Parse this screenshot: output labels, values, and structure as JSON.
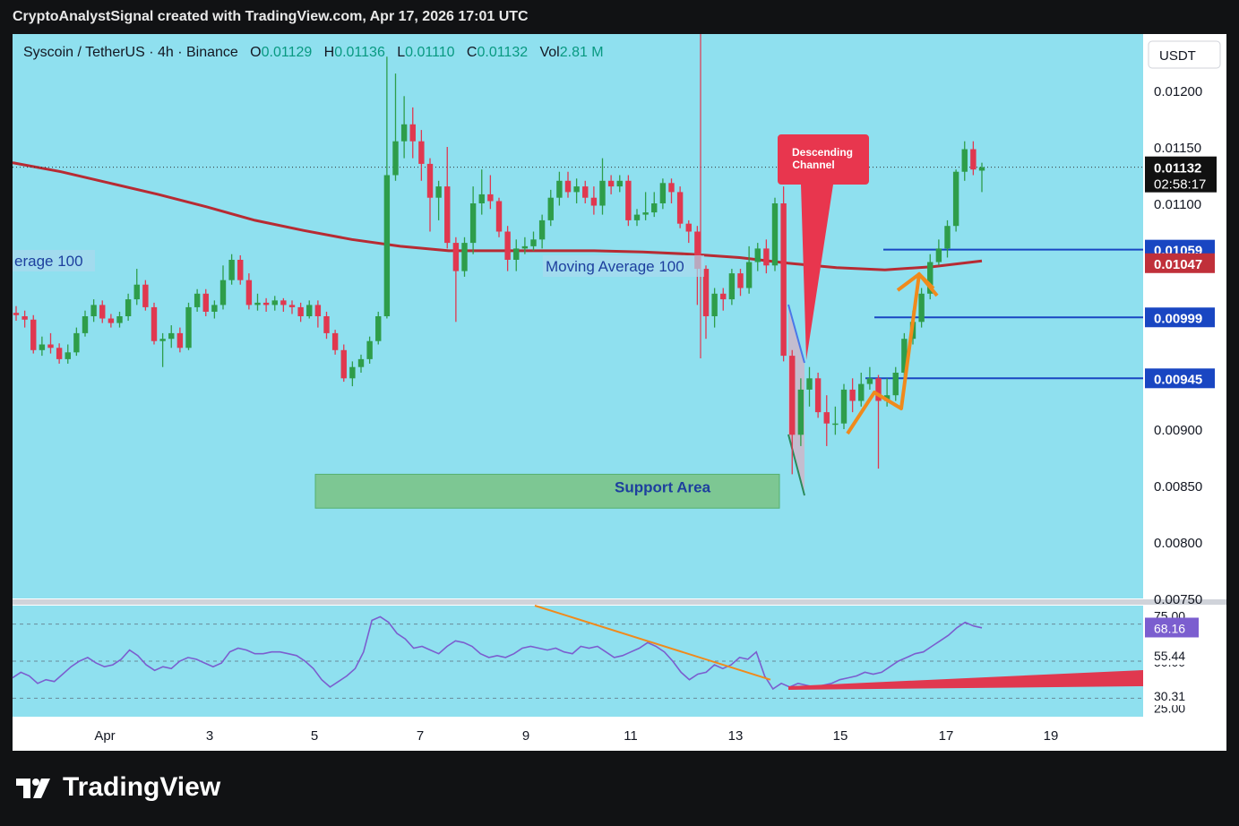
{
  "header": {
    "credit": "CryptoAnalystSignal created with TradingView.com, Apr 17, 2026 17:01 UTC"
  },
  "legend": {
    "symbol": "Syscoin / TetherUS · 4h · Binance",
    "o_label": "O",
    "o_value": "0.01129",
    "h_label": "H",
    "h_value": "0.01136",
    "l_label": "L",
    "l_value": "0.01110",
    "c_label": "C",
    "c_value": "0.01132",
    "vol_label": "Vol",
    "vol_value": "2.81 M"
  },
  "currency_badge": "USDT",
  "brand": "TradingView",
  "colors": {
    "background": "#8fe0ef",
    "up": "#2e9d4a",
    "down": "#e0384f",
    "ma": "#b72b33",
    "level_line": "#1946c2",
    "orange": "#f08a1c",
    "rsi": "#7b5ecf",
    "support": "#7cc58a"
  },
  "chart_data": [
    {
      "type": "candlestick",
      "ylim": [
        0.0075,
        0.0125
      ],
      "y_ticks": [
        "0.01200",
        "0.01150",
        "0.01100",
        "0.00900",
        "0.00850",
        "0.00800",
        "0.00750"
      ],
      "x_ticks": [
        "Apr",
        "3",
        "5",
        "7",
        "9",
        "11",
        "13",
        "15",
        "17",
        "19"
      ],
      "current_price": "0.01132",
      "countdown": "02:58:17",
      "price_labels": [
        {
          "value": 0.01059,
          "text": "0.01059"
        },
        {
          "value": 0.01047,
          "text": "0.01047"
        },
        {
          "value": 0.00999,
          "text": "0.00999"
        },
        {
          "value": 0.00945,
          "text": "0.00945"
        }
      ],
      "ma_label": "Moving Average 100",
      "ma_label_edge": "erage 100",
      "callout": "Descending Channel",
      "support_label": "Support Area",
      "support_zone": [
        0.0083,
        0.0086
      ],
      "ma_values": [
        0.01136,
        0.01128,
        0.01118,
        0.01108,
        0.01097,
        0.01085,
        0.01076,
        0.01068,
        0.01062,
        0.01058,
        0.01058,
        0.01058,
        0.01058,
        0.01057,
        0.01055,
        0.01052,
        0.01047,
        0.01043,
        0.01041,
        0.01044,
        0.01049
      ],
      "candles": [
        [
          0.01003,
          0.01001,
          0.01009,
          0.00996
        ],
        [
          0.01,
          0.00997,
          0.01005,
          0.0099
        ],
        [
          0.00997,
          0.0097,
          0.01001,
          0.00967
        ],
        [
          0.0097,
          0.00975,
          0.00982,
          0.00965
        ],
        [
          0.00975,
          0.00972,
          0.00985,
          0.00967
        ],
        [
          0.00972,
          0.00962,
          0.00976,
          0.00958
        ],
        [
          0.00962,
          0.00968,
          0.00975,
          0.00958
        ],
        [
          0.00968,
          0.00985,
          0.0099,
          0.00965
        ],
        [
          0.00985,
          0.01,
          0.01005,
          0.00982
        ],
        [
          0.01,
          0.0101,
          0.01015,
          0.00995
        ],
        [
          0.0101,
          0.00998,
          0.01014,
          0.00994
        ],
        [
          0.00998,
          0.00994,
          0.01002,
          0.0099
        ],
        [
          0.00994,
          0.01,
          0.01004,
          0.0099
        ],
        [
          0.01,
          0.01015,
          0.0102,
          0.00996
        ],
        [
          0.01015,
          0.01028,
          0.01042,
          0.0101
        ],
        [
          0.01028,
          0.01008,
          0.01032,
          0.01005
        ],
        [
          0.01008,
          0.00978,
          0.01012,
          0.00975
        ],
        [
          0.00978,
          0.0098,
          0.00985,
          0.00955
        ],
        [
          0.0098,
          0.00985,
          0.00992,
          0.00972
        ],
        [
          0.00985,
          0.00972,
          0.0099,
          0.00968
        ],
        [
          0.00972,
          0.01008,
          0.01012,
          0.0097
        ],
        [
          0.01008,
          0.0102,
          0.01024,
          0.01004
        ],
        [
          0.0102,
          0.01004,
          0.01024,
          0.01
        ],
        [
          0.01004,
          0.0101,
          0.01014,
          0.00998
        ],
        [
          0.0101,
          0.01032,
          0.01045,
          0.01006
        ],
        [
          0.01032,
          0.0105,
          0.01055,
          0.01028
        ],
        [
          0.0105,
          0.01032,
          0.01054,
          0.01028
        ],
        [
          0.01032,
          0.0101,
          0.01038,
          0.01006
        ],
        [
          0.0101,
          0.01012,
          0.0102,
          0.01005
        ],
        [
          0.01012,
          0.0101,
          0.01016,
          0.01004
        ],
        [
          0.0101,
          0.01014,
          0.01018,
          0.01005
        ],
        [
          0.01014,
          0.0101,
          0.01016,
          0.01004
        ],
        [
          0.0101,
          0.01008,
          0.01014,
          0.01002
        ],
        [
          0.01008,
          0.01,
          0.01012,
          0.00995
        ],
        [
          0.01,
          0.0101,
          0.01014,
          0.00998
        ],
        [
          0.0101,
          0.01,
          0.01014,
          0.0099
        ],
        [
          0.01,
          0.00985,
          0.01004,
          0.0098
        ],
        [
          0.00985,
          0.0097,
          0.00988,
          0.00966
        ],
        [
          0.0097,
          0.00945,
          0.00975,
          0.00942
        ],
        [
          0.00945,
          0.00955,
          0.0096,
          0.00938
        ],
        [
          0.00955,
          0.00962,
          0.00966,
          0.0095
        ],
        [
          0.00962,
          0.00978,
          0.00982,
          0.00958
        ],
        [
          0.00978,
          0.01,
          0.01004,
          0.00975
        ],
        [
          0.01,
          0.01125,
          0.0123,
          0.00998
        ],
        [
          0.01125,
          0.01155,
          0.01215,
          0.0112
        ],
        [
          0.01155,
          0.0117,
          0.01195,
          0.0114
        ],
        [
          0.0117,
          0.01155,
          0.01185,
          0.0114
        ],
        [
          0.01155,
          0.01135,
          0.01165,
          0.0112
        ],
        [
          0.01135,
          0.01105,
          0.0114,
          0.01075
        ],
        [
          0.01105,
          0.01115,
          0.0112,
          0.01085
        ],
        [
          0.01115,
          0.01065,
          0.0115,
          0.0106
        ],
        [
          0.01065,
          0.0104,
          0.0107,
          0.00995
        ],
        [
          0.0104,
          0.01065,
          0.0107,
          0.01035
        ],
        [
          0.01065,
          0.011,
          0.01115,
          0.01055
        ],
        [
          0.011,
          0.01108,
          0.0113,
          0.0109
        ],
        [
          0.01108,
          0.01102,
          0.01125,
          0.01095
        ],
        [
          0.01102,
          0.01075,
          0.01105,
          0.0107
        ],
        [
          0.01075,
          0.0105,
          0.0108,
          0.0104
        ],
        [
          0.0105,
          0.0106,
          0.01068,
          0.0104
        ],
        [
          0.0106,
          0.01062,
          0.0107,
          0.01055
        ],
        [
          0.01062,
          0.01068,
          0.01075,
          0.01058
        ],
        [
          0.01068,
          0.01085,
          0.0109,
          0.0106
        ],
        [
          0.01085,
          0.01105,
          0.01112,
          0.0108
        ],
        [
          0.01105,
          0.0112,
          0.01128,
          0.01098
        ],
        [
          0.0112,
          0.0111,
          0.01128,
          0.01105
        ],
        [
          0.0111,
          0.01115,
          0.01122,
          0.011
        ],
        [
          0.01115,
          0.01105,
          0.0112,
          0.011
        ],
        [
          0.01105,
          0.01098,
          0.01115,
          0.0109
        ],
        [
          0.01098,
          0.0112,
          0.0114,
          0.0109
        ],
        [
          0.0112,
          0.01115,
          0.01125,
          0.01108
        ],
        [
          0.01115,
          0.0112,
          0.01125,
          0.0111
        ],
        [
          0.0112,
          0.01085,
          0.01125,
          0.0108
        ],
        [
          0.01085,
          0.0109,
          0.01095,
          0.0108
        ],
        [
          0.0109,
          0.01092,
          0.0111,
          0.01085
        ],
        [
          0.01092,
          0.011,
          0.0111,
          0.01088
        ],
        [
          0.011,
          0.01118,
          0.01122,
          0.01095
        ],
        [
          0.01118,
          0.0111,
          0.01122,
          0.011
        ],
        [
          0.0111,
          0.01082,
          0.01115,
          0.01078
        ],
        [
          0.01082,
          0.01075,
          0.01085,
          0.01065
        ],
        [
          0.01075,
          0.01042,
          0.0108,
          0.0101
        ],
        [
          0.01042,
          0.01,
          0.01045,
          0.0098
        ],
        [
          0.01,
          0.0102,
          0.01025,
          0.0099
        ],
        [
          0.0102,
          0.01015,
          0.01025,
          0.01005
        ],
        [
          0.01015,
          0.01038,
          0.01042,
          0.0101
        ],
        [
          0.01038,
          0.01025,
          0.01042,
          0.01018
        ],
        [
          0.01025,
          0.01048,
          0.01062,
          0.0102
        ],
        [
          0.01048,
          0.0106,
          0.01065,
          0.0104
        ],
        [
          0.0106,
          0.01045,
          0.01068,
          0.01038
        ],
        [
          0.01045,
          0.011,
          0.01105,
          0.0104
        ],
        [
          0.011,
          0.00965,
          0.01115,
          0.0096
        ],
        [
          0.00965,
          0.00895,
          0.0097,
          0.0086
        ],
        [
          0.00895,
          0.00935,
          0.00945,
          0.00885
        ],
        [
          0.00935,
          0.00945,
          0.00955,
          0.0092
        ],
        [
          0.00945,
          0.00915,
          0.0095,
          0.0091
        ],
        [
          0.00915,
          0.00905,
          0.0093,
          0.00885
        ],
        [
          0.00905,
          0.00905,
          0.0092,
          0.00895
        ],
        [
          0.00905,
          0.00935,
          0.0094,
          0.009
        ],
        [
          0.00935,
          0.00925,
          0.00945,
          0.00915
        ],
        [
          0.00925,
          0.0094,
          0.0095,
          0.0092
        ],
        [
          0.0094,
          0.00945,
          0.00955,
          0.00935
        ],
        [
          0.00945,
          0.00925,
          0.00948,
          0.00865
        ],
        [
          0.00925,
          0.0093,
          0.00945,
          0.0092
        ],
        [
          0.0093,
          0.0095,
          0.00955,
          0.00925
        ],
        [
          0.0095,
          0.0098,
          0.00985,
          0.00945
        ],
        [
          0.0098,
          0.00995,
          0.01005,
          0.00975
        ],
        [
          0.00995,
          0.0102,
          0.01025,
          0.0099
        ],
        [
          0.0102,
          0.01048,
          0.01055,
          0.01015
        ],
        [
          0.01048,
          0.0106,
          0.01068,
          0.01045
        ],
        [
          0.0106,
          0.0108,
          0.01085,
          0.01052
        ],
        [
          0.0108,
          0.01128,
          0.0113,
          0.01075
        ],
        [
          0.01128,
          0.01148,
          0.01155,
          0.0112
        ],
        [
          0.01148,
          0.0113,
          0.01155,
          0.01125
        ],
        [
          0.01129,
          0.01132,
          0.01136,
          0.0111
        ]
      ]
    },
    {
      "type": "line",
      "name": "RSI",
      "ylim": [
        20,
        80
      ],
      "y_ticks": [
        "75.00",
        "55.44",
        "30.31"
      ],
      "current_value": "68.16",
      "hidden_ticks": [
        "50.00",
        "25.00"
      ],
      "levels": [
        70,
        50,
        30
      ],
      "values": [
        41,
        44,
        42,
        38,
        40,
        39,
        43,
        47,
        50,
        52,
        49,
        47,
        48,
        51,
        56,
        53,
        48,
        45,
        47,
        46,
        50,
        52,
        51,
        49,
        47,
        49,
        55,
        57,
        56,
        54,
        54,
        55,
        55,
        54,
        53,
        50,
        46,
        40,
        36,
        39,
        42,
        46,
        55,
        72,
        74,
        71,
        65,
        62,
        57,
        58,
        56,
        54,
        58,
        61,
        60,
        58,
        54,
        52,
        53,
        52,
        54,
        57,
        58,
        57,
        56,
        57,
        55,
        54,
        58,
        57,
        58,
        55,
        52,
        53,
        55,
        57,
        60,
        58,
        55,
        50,
        44,
        40,
        43,
        44,
        48,
        46,
        48,
        52,
        51,
        55,
        42,
        35,
        38,
        36,
        38,
        37,
        36,
        37,
        38,
        40,
        41,
        42,
        44,
        43,
        44,
        47,
        50,
        52,
        54,
        55,
        58,
        61,
        64,
        68,
        71,
        69,
        68
      ]
    }
  ]
}
